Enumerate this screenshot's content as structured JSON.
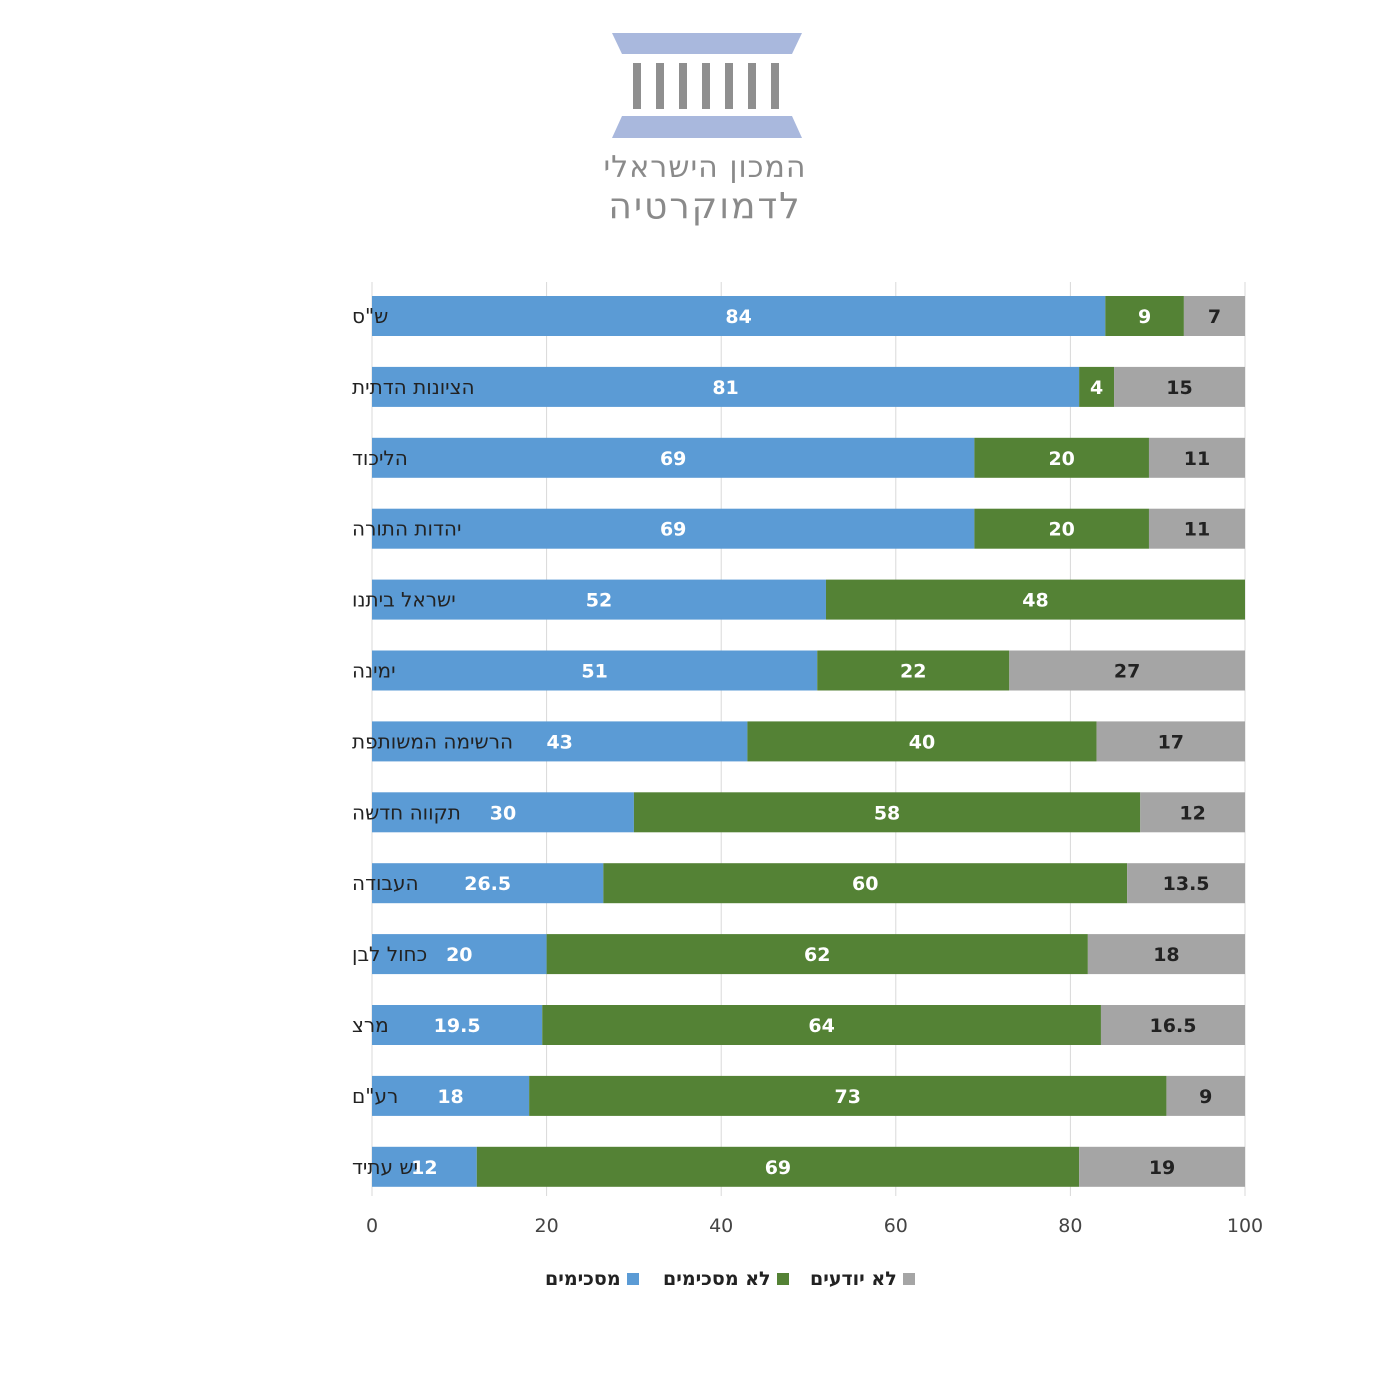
{
  "logo": {
    "line1": "המכון הישראלי",
    "line2": "לדמוקרטיה",
    "icon": "columns-building-icon",
    "accent_color": "#a9b8dd",
    "column_color": "#8f8f8f"
  },
  "chart_data": {
    "type": "bar",
    "orientation": "horizontal",
    "stacked": true,
    "categories": [
      "ש\"ס",
      "הציונות הדתית",
      "הליכוד",
      "יהדות התורה",
      "ישראל ביתנו",
      "ימינה",
      "הרשימה המשותפת",
      "תקווה חדשה",
      "העבודה",
      "כחול לבן",
      "מרצ",
      "רע\"ם",
      "יש עתיד"
    ],
    "series": [
      {
        "name": "מסכימים",
        "color": "#5b9bd5",
        "values": [
          84,
          81,
          69,
          69,
          52,
          51,
          43,
          30,
          26.5,
          20,
          19.5,
          18,
          12
        ]
      },
      {
        "name": "לא מסכימים",
        "color": "#548235",
        "values": [
          9,
          4,
          20,
          20,
          48,
          22,
          40,
          58,
          60,
          62,
          64,
          73,
          69
        ]
      },
      {
        "name": "לא יודעים",
        "color": "#a5a5a5",
        "values": [
          7,
          15,
          11,
          11,
          0,
          27,
          17,
          12,
          13.5,
          18,
          16.5,
          9,
          19
        ]
      }
    ],
    "xlim": [
      0,
      100
    ],
    "xticks": [
      0,
      20,
      40,
      60,
      80,
      100
    ],
    "grid": true,
    "legend_position": "bottom",
    "title": "",
    "xlabel": "",
    "ylabel": ""
  }
}
